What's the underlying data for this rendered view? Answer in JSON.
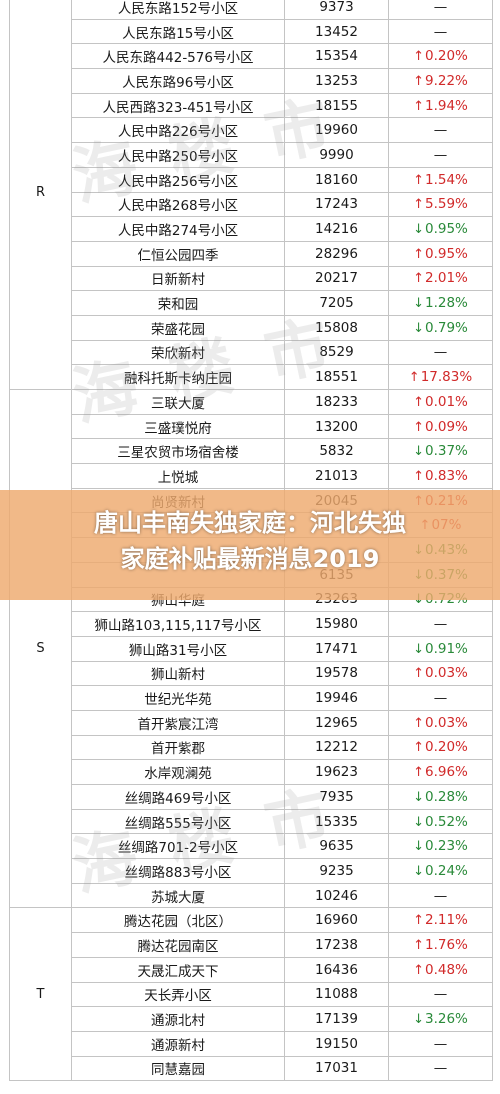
{
  "groups": [
    {
      "letter": "R",
      "rows": [
        {
          "name": "人民东路152号小区",
          "price": "9373",
          "change": "—",
          "dir": "flat"
        },
        {
          "name": "人民东路15号小区",
          "price": "13452",
          "change": "—",
          "dir": "flat"
        },
        {
          "name": "人民东路442-576号小区",
          "price": "15354",
          "change": "0.20%",
          "dir": "up"
        },
        {
          "name": "人民东路96号小区",
          "price": "13253",
          "change": "9.22%",
          "dir": "up"
        },
        {
          "name": "人民西路323-451号小区",
          "price": "18155",
          "change": "1.94%",
          "dir": "up"
        },
        {
          "name": "人民中路226号小区",
          "price": "19960",
          "change": "—",
          "dir": "flat"
        },
        {
          "name": "人民中路250号小区",
          "price": "9990",
          "change": "—",
          "dir": "flat"
        },
        {
          "name": "人民中路256号小区",
          "price": "18160",
          "change": "1.54%",
          "dir": "up"
        },
        {
          "name": "人民中路268号小区",
          "price": "17243",
          "change": "5.59%",
          "dir": "up"
        },
        {
          "name": "人民中路274号小区",
          "price": "14216",
          "change": "0.95%",
          "dir": "down"
        },
        {
          "name": "仁恒公园四季",
          "price": "28296",
          "change": "0.95%",
          "dir": "up"
        },
        {
          "name": "日新新村",
          "price": "20217",
          "change": "2.01%",
          "dir": "up"
        },
        {
          "name": "荣和园",
          "price": "7205",
          "change": "1.28%",
          "dir": "down"
        },
        {
          "name": "荣盛花园",
          "price": "15808",
          "change": "0.79%",
          "dir": "down"
        },
        {
          "name": "荣欣新村",
          "price": "8529",
          "change": "—",
          "dir": "flat"
        },
        {
          "name": "融科托斯卡纳庄园",
          "price": "18551",
          "change": "17.83%",
          "dir": "up"
        }
      ]
    },
    {
      "letter": "S",
      "rows": [
        {
          "name": "三联大厦",
          "price": "18233",
          "change": "0.01%",
          "dir": "up"
        },
        {
          "name": "三盛璞悦府",
          "price": "13200",
          "change": "0.09%",
          "dir": "up"
        },
        {
          "name": "三星农贸市场宿舍楼",
          "price": "5832",
          "change": "0.37%",
          "dir": "down"
        },
        {
          "name": "上悦城",
          "price": "21013",
          "change": "0.83%",
          "dir": "up"
        },
        {
          "name": "尚贤新村",
          "price": "20045",
          "change": "0.21%",
          "dir": "up"
        },
        {
          "name": "",
          "price": "",
          "change": "07%",
          "dir": "up"
        },
        {
          "name": "",
          "price": "",
          "change": "0.43%",
          "dir": "down"
        },
        {
          "name": "",
          "price": "6135",
          "change": "0.37%",
          "dir": "down"
        },
        {
          "name": "狮山华庭",
          "price": "23263",
          "change": "0.72%",
          "dir": "down"
        },
        {
          "name": "狮山路103,115,117号小区",
          "price": "15980",
          "change": "—",
          "dir": "flat"
        },
        {
          "name": "狮山路31号小区",
          "price": "17471",
          "change": "0.91%",
          "dir": "down"
        },
        {
          "name": "狮山新村",
          "price": "19578",
          "change": "0.03%",
          "dir": "up"
        },
        {
          "name": "世纪光华苑",
          "price": "19946",
          "change": "—",
          "dir": "flat"
        },
        {
          "name": "首开紫宸江湾",
          "price": "12965",
          "change": "0.03%",
          "dir": "up"
        },
        {
          "name": "首开紫郡",
          "price": "12212",
          "change": "0.20%",
          "dir": "up"
        },
        {
          "name": "水岸观澜苑",
          "price": "19623",
          "change": "6.96%",
          "dir": "up"
        },
        {
          "name": "丝绸路469号小区",
          "price": "7935",
          "change": "0.28%",
          "dir": "down"
        },
        {
          "name": "丝绸路555号小区",
          "price": "15335",
          "change": "0.52%",
          "dir": "down"
        },
        {
          "name": "丝绸路701-2号小区",
          "price": "9635",
          "change": "0.23%",
          "dir": "down"
        },
        {
          "name": "丝绸路883号小区",
          "price": "9235",
          "change": "0.24%",
          "dir": "down"
        },
        {
          "name": "苏城大厦",
          "price": "10246",
          "change": "—",
          "dir": "flat"
        }
      ]
    },
    {
      "letter": "T",
      "rows": [
        {
          "name": "腾达花园（北区）",
          "price": "16960",
          "change": "2.11%",
          "dir": "up"
        },
        {
          "name": "腾达花园南区",
          "price": "17238",
          "change": "1.76%",
          "dir": "up"
        },
        {
          "name": "天晟汇成天下",
          "price": "16436",
          "change": "0.48%",
          "dir": "up"
        },
        {
          "name": "天长弄小区",
          "price": "11088",
          "change": "—",
          "dir": "flat"
        },
        {
          "name": "通源北村",
          "price": "17139",
          "change": "3.26%",
          "dir": "down"
        },
        {
          "name": "通源新村",
          "price": "19150",
          "change": "—",
          "dir": "flat"
        },
        {
          "name": "同慧嘉园",
          "price": "17031",
          "change": "—",
          "dir": "flat"
        }
      ]
    }
  ],
  "arrows": {
    "up": "↑",
    "down": "↓"
  },
  "banner": {
    "line1": "唐山丰南失独家庭：河北失独",
    "line2": "家庭补贴最新消息2019"
  },
  "colors": {
    "up": "#d12a2a",
    "down": "#2a8a3a",
    "banner": "#eeaa6e"
  }
}
